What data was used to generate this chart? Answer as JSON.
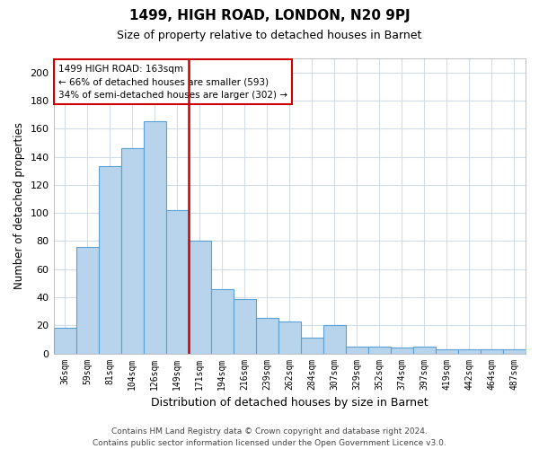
{
  "title": "1499, HIGH ROAD, LONDON, N20 9PJ",
  "subtitle": "Size of property relative to detached houses in Barnet",
  "xlabel": "Distribution of detached houses by size in Barnet",
  "ylabel": "Number of detached properties",
  "categories": [
    "36sqm",
    "59sqm",
    "81sqm",
    "104sqm",
    "126sqm",
    "149sqm",
    "171sqm",
    "194sqm",
    "216sqm",
    "239sqm",
    "262sqm",
    "284sqm",
    "307sqm",
    "329sqm",
    "352sqm",
    "374sqm",
    "397sqm",
    "419sqm",
    "442sqm",
    "464sqm",
    "487sqm"
  ],
  "values": [
    18,
    76,
    133,
    146,
    165,
    102,
    80,
    46,
    39,
    25,
    23,
    11,
    20,
    5,
    5,
    4,
    5,
    3,
    3,
    3,
    3
  ],
  "bar_color": "#b8d4ec",
  "bar_edge_color": "#5a9fd4",
  "vline_color": "#cc0000",
  "vline_pos": 6.0,
  "ylim": [
    0,
    210
  ],
  "yticks": [
    0,
    20,
    40,
    60,
    80,
    100,
    120,
    140,
    160,
    180,
    200
  ],
  "annotation_title": "1499 HIGH ROAD: 163sqm",
  "annotation_line1": "← 66% of detached houses are smaller (593)",
  "annotation_line2": "34% of semi-detached houses are larger (302) →",
  "annotation_box_color": "#ffffff",
  "annotation_box_edge": "#cc0000",
  "footer_line1": "Contains HM Land Registry data © Crown copyright and database right 2024.",
  "footer_line2": "Contains public sector information licensed under the Open Government Licence v3.0.",
  "background_color": "#ffffff",
  "grid_color": "#d0dce8"
}
